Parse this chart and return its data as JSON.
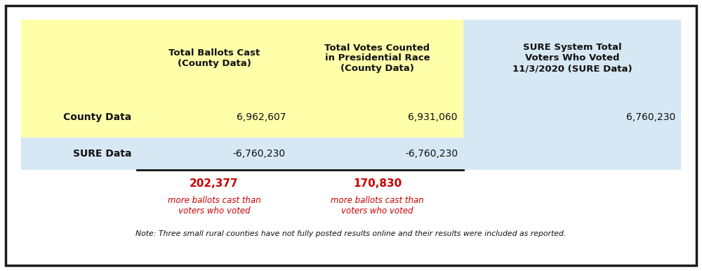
{
  "bg_color": "#ffffff",
  "border_color": "#1a1a1a",
  "yellow_bg": "#ffffaa",
  "blue_bg": "#d6e8f4",
  "header_texts": [
    "",
    "Total Ballots Cast\n(County Data)",
    "Total Votes Counted\nin Presidential Race\n(County Data)",
    "SURE System Total\nVoters Who Voted\n11/3/2020 (SURE Data)"
  ],
  "row1_label": "County Data",
  "row1_col1": "6,962,607",
  "row1_col2": "6,931,060",
  "row1_col3": "6,760,230",
  "row2_label": "SURE Data",
  "row2_col1": "-6,760,230",
  "row2_col2": "-6,760,230",
  "diff1_bold": "202,377",
  "diff1_sub": "more ballots cast than\nvoters who voted",
  "diff2_bold": "170,830",
  "diff2_sub": "more ballots cast than\nvoters who voted",
  "note": "Note: Three small rural counties have not fully posted results online and their results were included as reported.",
  "red_color": "#cc0000",
  "black_color": "#111111"
}
